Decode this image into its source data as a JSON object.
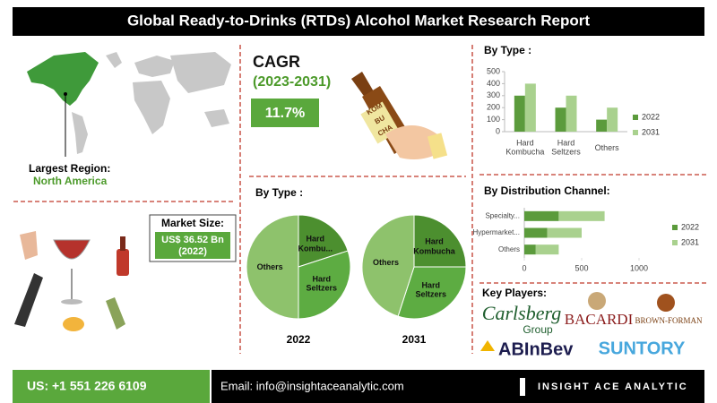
{
  "header": {
    "title": "Global Ready-to-Drinks (RTDs) Alcohol Market Research Report"
  },
  "region": {
    "label": "Largest Region:",
    "value": "North America"
  },
  "market_size": {
    "label": "Market Size:",
    "value": "US$ 36.52 Bn",
    "year": "(2022)"
  },
  "cagr": {
    "label": "CAGR",
    "period": "(2023-2031)",
    "value": "11.7%"
  },
  "illustration": {
    "bottle_text": [
      "KOM",
      "BU",
      "CHA"
    ]
  },
  "pie_section_title": "By Type :",
  "chart_data": [
    {
      "type": "bar",
      "orientation": "vertical",
      "title": "By Type :",
      "categories": [
        "Hard Kombucha",
        "Hard Seltzers",
        "Others"
      ],
      "series": [
        {
          "name": "2022",
          "color": "#5b9b3c",
          "values": [
            300,
            200,
            100
          ]
        },
        {
          "name": "2031",
          "color": "#a9d18e",
          "values": [
            400,
            300,
            200
          ]
        }
      ],
      "ylim": [
        0,
        500
      ],
      "yticks": [
        0,
        100,
        200,
        300,
        400,
        500
      ],
      "legend": "right"
    },
    {
      "type": "bar",
      "orientation": "horizontal",
      "stacked": true,
      "title": "By Distribution Channel:",
      "categories": [
        "Specialty...",
        "Hypermarket...",
        "Others"
      ],
      "series": [
        {
          "name": "2022",
          "color": "#5b9b3c",
          "values": [
            300,
            200,
            100
          ]
        },
        {
          "name": "2031",
          "color": "#a9d18e",
          "values": [
            400,
            300,
            200
          ]
        }
      ],
      "xlim": [
        0,
        1000
      ],
      "xticks": [
        0,
        500,
        1000
      ],
      "legend": "right"
    },
    {
      "type": "pie",
      "label": "2022",
      "categories": [
        "Hard Kombu...",
        "Hard Seltzers",
        "Others"
      ],
      "colors": [
        "#4c8f2f",
        "#5dac42",
        "#8ec26c"
      ],
      "values": [
        20,
        30,
        50
      ]
    },
    {
      "type": "pie",
      "label": "2031",
      "categories": [
        "Hard Kombucha",
        "Hard Seltzers",
        "Others"
      ],
      "colors": [
        "#4c8f2f",
        "#5dac42",
        "#8ec26c"
      ],
      "values": [
        25,
        30,
        45
      ]
    }
  ],
  "key_players": {
    "title": "Key Players:",
    "names": [
      "Carlsberg",
      "Group",
      "BACARDI",
      "BROWN-FORMAN",
      "ABInBev",
      "SUNTORY"
    ]
  },
  "footer": {
    "phone": "US: +1 551 226 6109",
    "email": "Email: info@insightaceanalytic.com",
    "brand": "INSIGHT ACE ANALYTIC"
  }
}
